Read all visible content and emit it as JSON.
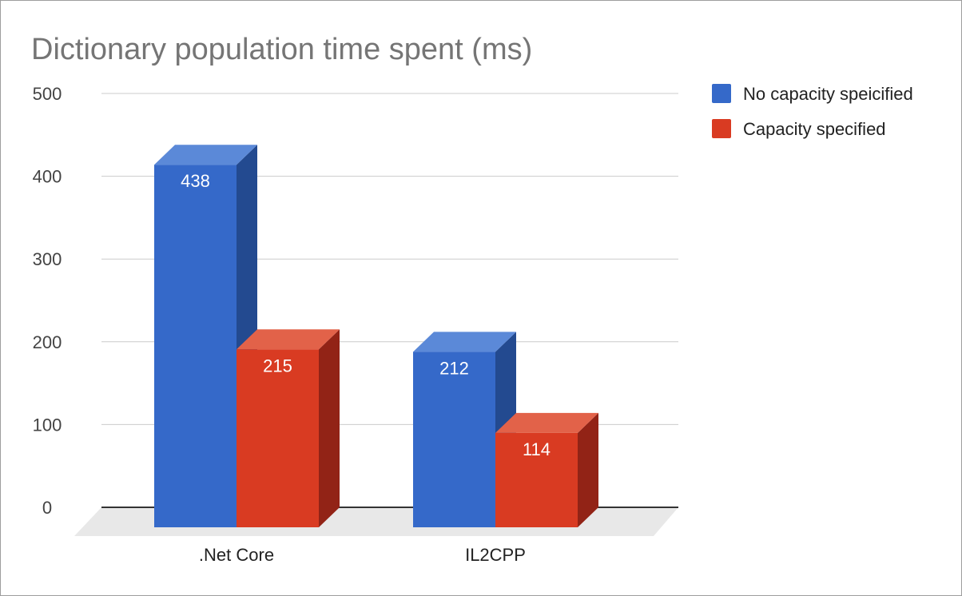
{
  "chart_data": {
    "type": "bar",
    "title": "Dictionary population time spent (ms)",
    "categories": [
      ".Net Core",
      "IL2CPP"
    ],
    "series": [
      {
        "name": "No capacity speicified",
        "values": [
          438,
          212
        ],
        "color": "#3569c9",
        "top_color": "#5b89d8",
        "side_color": "#234a90"
      },
      {
        "name": "Capacity specified",
        "values": [
          215,
          114
        ],
        "color": "#d93b22",
        "top_color": "#e26249",
        "side_color": "#922316"
      }
    ],
    "data_labels": [
      [
        "438",
        "212"
      ],
      [
        "215",
        "114"
      ]
    ],
    "ylim": [
      0,
      500
    ],
    "yticks": [
      0,
      100,
      200,
      300,
      400,
      500
    ],
    "ytick_labels": [
      "0",
      "100",
      "200",
      "300",
      "400",
      "500"
    ],
    "xlabel": "",
    "ylabel": "",
    "grid": true,
    "legend_position": "right",
    "three_d": true
  }
}
